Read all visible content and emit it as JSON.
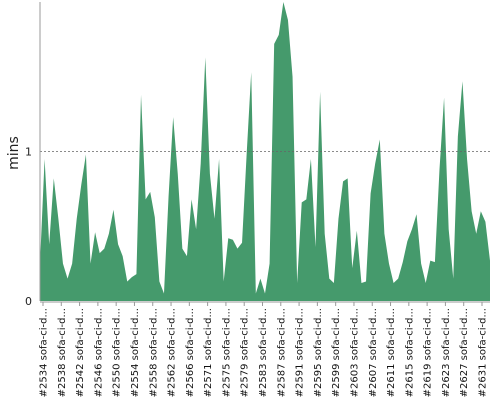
{
  "chart_data": {
    "type": "area",
    "ylabel": "mins",
    "yticks": [
      0,
      1
    ],
    "ylim": [
      0,
      2
    ],
    "reference_line": 1,
    "color": "#459a6c",
    "grid": false,
    "x_tick_labels": [
      "#2534 sofa-ci-d...",
      "#2538 sofa-ci-d...",
      "#2542 sofa-ci-d...",
      "#2546 sofa-ci-d...",
      "#2550 sofa-ci-d...",
      "#2554 sofa-ci-d...",
      "#2558 sofa-ci-d...",
      "#2562 sofa-ci-d...",
      "#2566 sofa-ci-d...",
      "#2571 sofa-ci-d...",
      "#2575 sofa-ci-d...",
      "#2579 sofa-ci-d...",
      "#2583 sofa-ci-d...",
      "#2587 sofa-ci-d...",
      "#2591 sofa-ci-d...",
      "#2595 sofa-ci-d...",
      "#2599 sofa-ci-d...",
      "#2603 sofa-ci-d...",
      "#2607 sofa-ci-d...",
      "#2611 sofa-ci-d...",
      "#2615 sofa-ci-d...",
      "#2619 sofa-ci-d...",
      "#2623 sofa-ci-d...",
      "#2627 sofa-ci-d...",
      "#2631 sofa-ci-d..."
    ],
    "values": [
      0.25,
      0.95,
      0.38,
      0.82,
      0.55,
      0.25,
      0.15,
      0.25,
      0.55,
      0.78,
      0.98,
      0.25,
      0.46,
      0.32,
      0.35,
      0.45,
      0.61,
      0.38,
      0.3,
      0.13,
      0.16,
      0.18,
      1.38,
      0.68,
      0.73,
      0.56,
      0.13,
      0.05,
      0.7,
      1.23,
      0.85,
      0.35,
      0.3,
      0.68,
      0.48,
      0.92,
      1.63,
      0.85,
      0.55,
      0.95,
      0.13,
      0.42,
      0.41,
      0.35,
      0.39,
      0.98,
      1.53,
      0.05,
      0.15,
      0.05,
      0.25,
      1.72,
      1.78,
      2.02,
      1.88,
      1.5,
      0.12,
      0.66,
      0.68,
      0.95,
      0.36,
      1.4,
      0.45,
      0.15,
      0.12,
      0.55,
      0.8,
      0.82,
      0.22,
      0.47,
      0.12,
      0.13,
      0.72,
      0.92,
      1.08,
      0.45,
      0.25,
      0.12,
      0.15,
      0.26,
      0.4,
      0.48,
      0.58,
      0.25,
      0.12,
      0.27,
      0.26,
      0.88,
      1.36,
      0.48,
      0.15,
      1.1,
      1.47,
      0.95,
      0.6,
      0.45,
      0.6,
      0.53,
      0.27
    ]
  }
}
